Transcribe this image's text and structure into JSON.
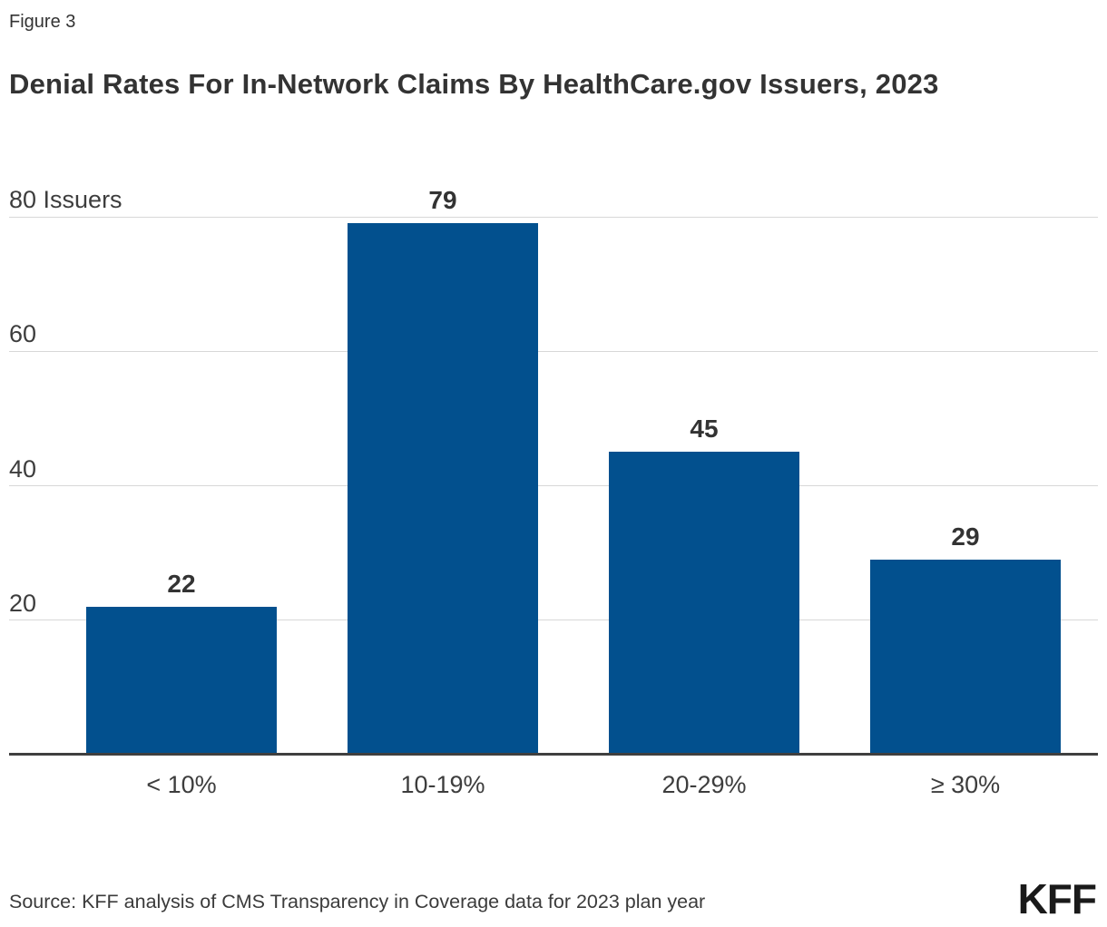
{
  "figure_label": "Figure 3",
  "title": "Denial Rates For In-Network Claims By HealthCare.gov Issuers, 2023",
  "source": "Source: KFF analysis of CMS Transparency in Coverage data for 2023 plan year",
  "logo_text": "KFF",
  "colors": {
    "bar": "#02508e",
    "gridline": "#d8d8d8",
    "axis_line": "#3f3f3f",
    "text": "#333333"
  },
  "chart_data": {
    "type": "bar",
    "title": "Denial Rates For In-Network Claims By HealthCare.gov Issuers, 2023",
    "categories": [
      "< 10%",
      "10-19%",
      "20-29%",
      "≥ 30%"
    ],
    "values": [
      22,
      79,
      45,
      29
    ],
    "bar_labels": [
      "22",
      "79",
      "45",
      "29"
    ],
    "xlabel": "",
    "ylabel": "Issuers",
    "ylim": [
      0,
      80
    ],
    "yticks": [
      {
        "value": 20,
        "label": "20"
      },
      {
        "value": 40,
        "label": "40"
      },
      {
        "value": 60,
        "label": "60"
      },
      {
        "value": 80,
        "label": "80 Issuers"
      }
    ],
    "grid": true,
    "legend_position": "none",
    "bar_color": "#02508e"
  }
}
